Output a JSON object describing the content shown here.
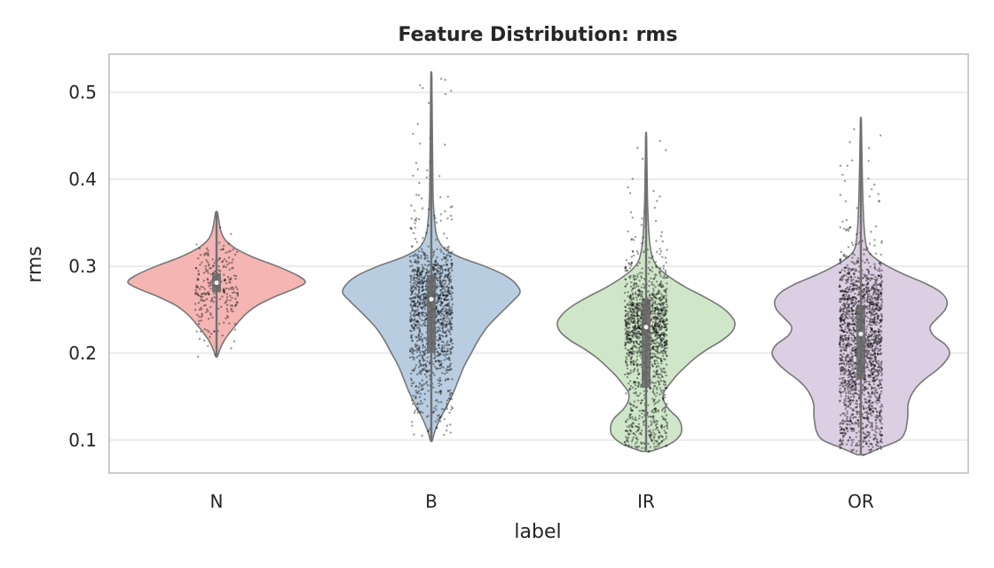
{
  "chart_data": {
    "type": "violin",
    "title": "Feature Distribution: rms",
    "xlabel": "label",
    "ylabel": "rms",
    "categories": [
      "N",
      "B",
      "IR",
      "OR"
    ],
    "ylim": [
      0.062,
      0.544
    ],
    "yticks": [
      0.1,
      0.2,
      0.3,
      0.4,
      0.5
    ],
    "ytick_labels": [
      "0.1",
      "0.2",
      "0.3",
      "0.4",
      "0.5"
    ],
    "grid": "horizontal",
    "series": [
      {
        "category": "N",
        "color": "#f4b5b3",
        "min": 0.196,
        "max": 0.362,
        "q1": 0.27,
        "median": 0.281,
        "q3": 0.292,
        "whisker_low": 0.225,
        "whisker_high": 0.335,
        "profile": [
          [
            0.196,
            0.01
          ],
          [
            0.205,
            0.04
          ],
          [
            0.215,
            0.09
          ],
          [
            0.225,
            0.16
          ],
          [
            0.235,
            0.24
          ],
          [
            0.245,
            0.33
          ],
          [
            0.255,
            0.46
          ],
          [
            0.265,
            0.66
          ],
          [
            0.275,
            0.9
          ],
          [
            0.282,
            1.0
          ],
          [
            0.29,
            0.9
          ],
          [
            0.3,
            0.68
          ],
          [
            0.31,
            0.42
          ],
          [
            0.32,
            0.22
          ],
          [
            0.33,
            0.1
          ],
          [
            0.34,
            0.05
          ],
          [
            0.35,
            0.03
          ],
          [
            0.362,
            0.01
          ]
        ]
      },
      {
        "category": "B",
        "color": "#b8cde0",
        "min": 0.099,
        "max": 0.52,
        "q1": 0.2,
        "median": 0.262,
        "q3": 0.29,
        "whisker_low": 0.11,
        "whisker_high": 0.34,
        "profile": [
          [
            0.099,
            0.01
          ],
          [
            0.11,
            0.04
          ],
          [
            0.125,
            0.1
          ],
          [
            0.14,
            0.18
          ],
          [
            0.155,
            0.25
          ],
          [
            0.17,
            0.31
          ],
          [
            0.185,
            0.37
          ],
          [
            0.2,
            0.45
          ],
          [
            0.215,
            0.53
          ],
          [
            0.23,
            0.63
          ],
          [
            0.245,
            0.77
          ],
          [
            0.26,
            0.92
          ],
          [
            0.27,
            1.0
          ],
          [
            0.28,
            0.95
          ],
          [
            0.29,
            0.82
          ],
          [
            0.3,
            0.6
          ],
          [
            0.31,
            0.33
          ],
          [
            0.32,
            0.15
          ],
          [
            0.33,
            0.08
          ],
          [
            0.34,
            0.05
          ],
          [
            0.36,
            0.03
          ],
          [
            0.38,
            0.02
          ],
          [
            0.42,
            0.015
          ],
          [
            0.47,
            0.01
          ],
          [
            0.52,
            0.005
          ]
        ]
      },
      {
        "category": "IR",
        "color": "#cfe6c9",
        "min": 0.087,
        "max": 0.449,
        "q1": 0.16,
        "median": 0.23,
        "q3": 0.262,
        "whisker_low": 0.09,
        "whisker_high": 0.33,
        "profile": [
          [
            0.087,
            0.05
          ],
          [
            0.095,
            0.26
          ],
          [
            0.105,
            0.38
          ],
          [
            0.115,
            0.4
          ],
          [
            0.125,
            0.36
          ],
          [
            0.135,
            0.26
          ],
          [
            0.145,
            0.2
          ],
          [
            0.155,
            0.2
          ],
          [
            0.165,
            0.27
          ],
          [
            0.175,
            0.35
          ],
          [
            0.185,
            0.45
          ],
          [
            0.195,
            0.56
          ],
          [
            0.205,
            0.7
          ],
          [
            0.215,
            0.86
          ],
          [
            0.225,
            0.97
          ],
          [
            0.235,
            1.0
          ],
          [
            0.245,
            0.94
          ],
          [
            0.255,
            0.82
          ],
          [
            0.265,
            0.65
          ],
          [
            0.275,
            0.46
          ],
          [
            0.285,
            0.3
          ],
          [
            0.295,
            0.17
          ],
          [
            0.305,
            0.09
          ],
          [
            0.32,
            0.05
          ],
          [
            0.34,
            0.03
          ],
          [
            0.38,
            0.015
          ],
          [
            0.449,
            0.005
          ]
        ]
      },
      {
        "category": "OR",
        "color": "#dccee3",
        "min": 0.083,
        "max": 0.467,
        "q1": 0.17,
        "median": 0.222,
        "q3": 0.255,
        "whisker_low": 0.09,
        "whisker_high": 0.33,
        "profile": [
          [
            0.083,
            0.04
          ],
          [
            0.09,
            0.2
          ],
          [
            0.1,
            0.43
          ],
          [
            0.11,
            0.5
          ],
          [
            0.12,
            0.52
          ],
          [
            0.13,
            0.53
          ],
          [
            0.14,
            0.53
          ],
          [
            0.15,
            0.56
          ],
          [
            0.16,
            0.62
          ],
          [
            0.17,
            0.72
          ],
          [
            0.18,
            0.85
          ],
          [
            0.19,
            0.95
          ],
          [
            0.2,
            1.0
          ],
          [
            0.21,
            0.95
          ],
          [
            0.22,
            0.82
          ],
          [
            0.23,
            0.78
          ],
          [
            0.24,
            0.86
          ],
          [
            0.25,
            0.95
          ],
          [
            0.26,
            0.97
          ],
          [
            0.27,
            0.9
          ],
          [
            0.28,
            0.73
          ],
          [
            0.29,
            0.5
          ],
          [
            0.3,
            0.3
          ],
          [
            0.31,
            0.15
          ],
          [
            0.32,
            0.07
          ],
          [
            0.34,
            0.04
          ],
          [
            0.37,
            0.025
          ],
          [
            0.41,
            0.015
          ],
          [
            0.467,
            0.005
          ]
        ]
      }
    ]
  }
}
